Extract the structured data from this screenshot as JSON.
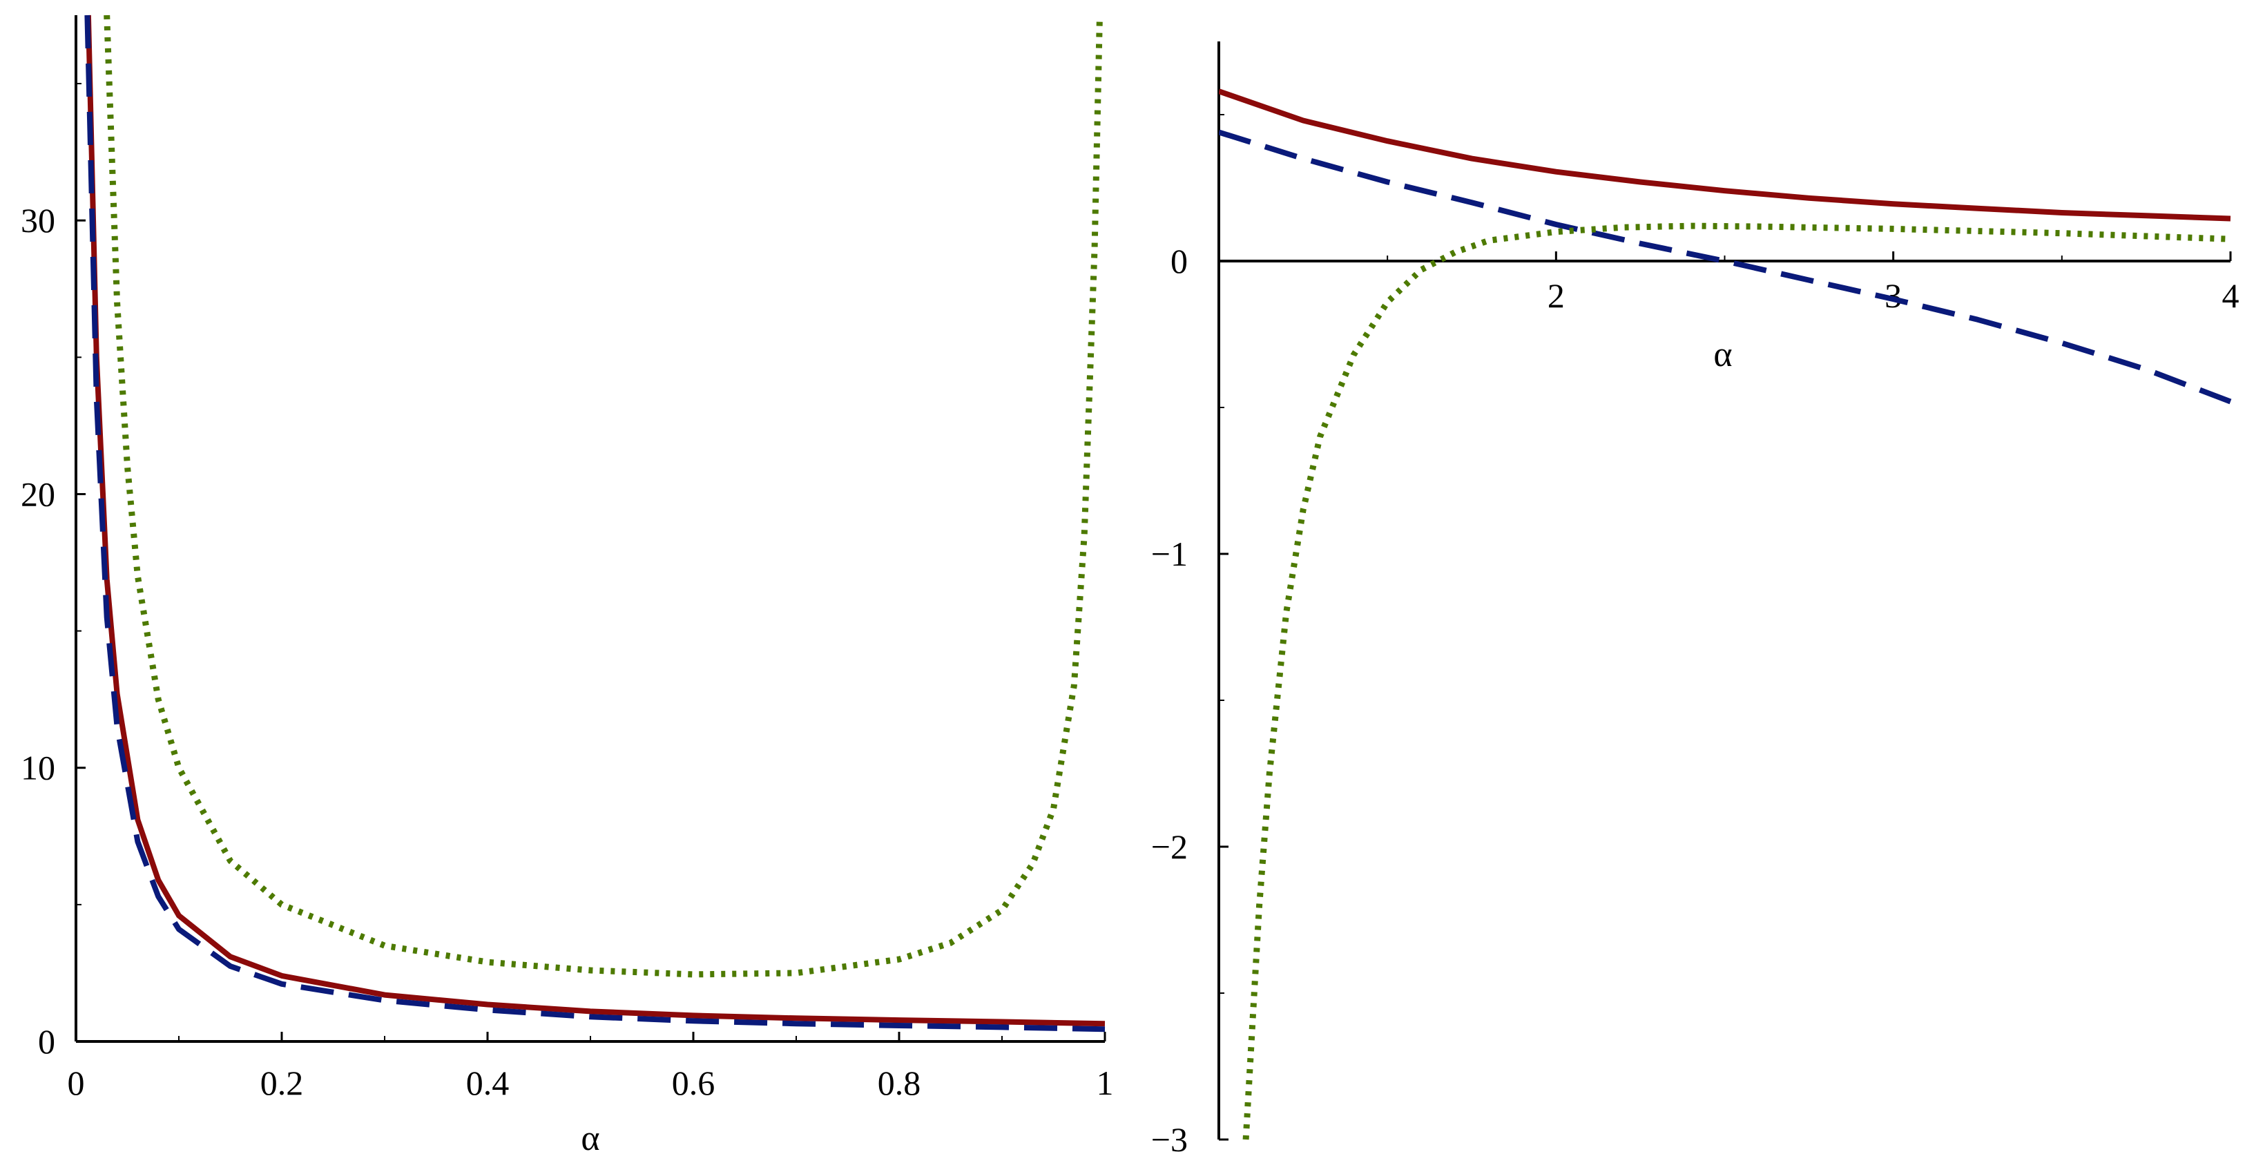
{
  "chart_data": [
    {
      "type": "line",
      "xlabel": "α",
      "ylabel": "",
      "xlim": [
        0,
        1
      ],
      "ylim": [
        0,
        37.5
      ],
      "x_ticks": [
        0,
        0.2,
        0.4,
        0.6,
        0.8,
        1
      ],
      "x_tick_labels": [
        "0",
        "0.2",
        "0.4",
        "0.6",
        "0.8",
        "1"
      ],
      "y_ticks": [
        0,
        10,
        20,
        30
      ],
      "y_tick_labels": [
        "0",
        "10",
        "20",
        "30"
      ],
      "series": [
        {
          "name": "solid",
          "style": "solid",
          "color": "#8b0a0a",
          "x": [
            0.012,
            0.02,
            0.03,
            0.04,
            0.06,
            0.08,
            0.1,
            0.15,
            0.2,
            0.3,
            0.4,
            0.5,
            0.6,
            0.7,
            0.8,
            0.9,
            1.0
          ],
          "y": [
            37.5,
            25.0,
            16.9,
            12.7,
            8.1,
            5.9,
            4.6,
            3.1,
            2.4,
            1.7,
            1.35,
            1.1,
            0.95,
            0.85,
            0.78,
            0.72,
            0.65
          ]
        },
        {
          "name": "dashed",
          "style": "dashed",
          "color": "#0a1a7a",
          "x": [
            0.011,
            0.02,
            0.03,
            0.04,
            0.06,
            0.08,
            0.1,
            0.15,
            0.2,
            0.3,
            0.4,
            0.5,
            0.6,
            0.7,
            0.8,
            0.9,
            1.0
          ],
          "y": [
            37.5,
            23.5,
            15.5,
            11.5,
            7.3,
            5.3,
            4.1,
            2.75,
            2.1,
            1.5,
            1.15,
            0.9,
            0.75,
            0.65,
            0.58,
            0.52,
            0.45
          ]
        },
        {
          "name": "dotted",
          "style": "dotted",
          "color": "#4d7a00",
          "x": [
            0.03,
            0.04,
            0.05,
            0.06,
            0.08,
            0.1,
            0.15,
            0.2,
            0.3,
            0.4,
            0.5,
            0.6,
            0.7,
            0.8,
            0.85,
            0.9,
            0.93,
            0.95,
            0.97,
            0.98,
            0.99,
            0.995
          ],
          "y": [
            37.5,
            27.0,
            21.0,
            17.0,
            12.5,
            10.0,
            6.6,
            5.0,
            3.5,
            2.9,
            2.6,
            2.45,
            2.5,
            3.0,
            3.6,
            4.8,
            6.5,
            8.5,
            13.0,
            18.5,
            29.0,
            37.5
          ]
        }
      ]
    },
    {
      "type": "line",
      "xlabel": "α",
      "ylabel": "",
      "xlim": [
        1,
        4
      ],
      "ylim": [
        -3,
        0.75
      ],
      "x_ticks": [
        2,
        3,
        4
      ],
      "x_tick_labels": [
        "2",
        "3",
        "4"
      ],
      "y_ticks": [
        -3,
        -2,
        -1,
        0
      ],
      "y_tick_labels": [
        "−3",
        "−2",
        "−1",
        "0"
      ],
      "series": [
        {
          "name": "solid",
          "style": "solid",
          "color": "#8b0a0a",
          "x": [
            1.0,
            1.25,
            1.5,
            1.75,
            2.0,
            2.25,
            2.5,
            2.75,
            3.0,
            3.25,
            3.5,
            3.75,
            4.0
          ],
          "y": [
            0.58,
            0.48,
            0.41,
            0.35,
            0.305,
            0.27,
            0.24,
            0.215,
            0.195,
            0.18,
            0.165,
            0.155,
            0.145
          ]
        },
        {
          "name": "dashed",
          "style": "dashed",
          "color": "#0a1a7a",
          "x": [
            1.0,
            1.25,
            1.5,
            1.75,
            2.0,
            2.25,
            2.5,
            2.75,
            3.0,
            3.25,
            3.5,
            3.75,
            4.0
          ],
          "y": [
            0.44,
            0.35,
            0.27,
            0.2,
            0.125,
            0.06,
            0.0,
            -0.065,
            -0.13,
            -0.2,
            -0.28,
            -0.37,
            -0.48
          ]
        },
        {
          "name": "dotted",
          "style": "dotted",
          "color": "#4d7a00",
          "x": [
            1.08,
            1.1,
            1.12,
            1.15,
            1.2,
            1.25,
            1.3,
            1.4,
            1.5,
            1.6,
            1.7,
            1.8,
            2.0,
            2.2,
            2.4,
            2.6,
            2.8,
            3.0,
            3.5,
            4.0
          ],
          "y": [
            -3.0,
            -2.6,
            -2.2,
            -1.75,
            -1.2,
            -0.85,
            -0.6,
            -0.32,
            -0.14,
            -0.03,
            0.03,
            0.07,
            0.1,
            0.115,
            0.12,
            0.118,
            0.114,
            0.11,
            0.095,
            0.075
          ]
        }
      ]
    }
  ]
}
